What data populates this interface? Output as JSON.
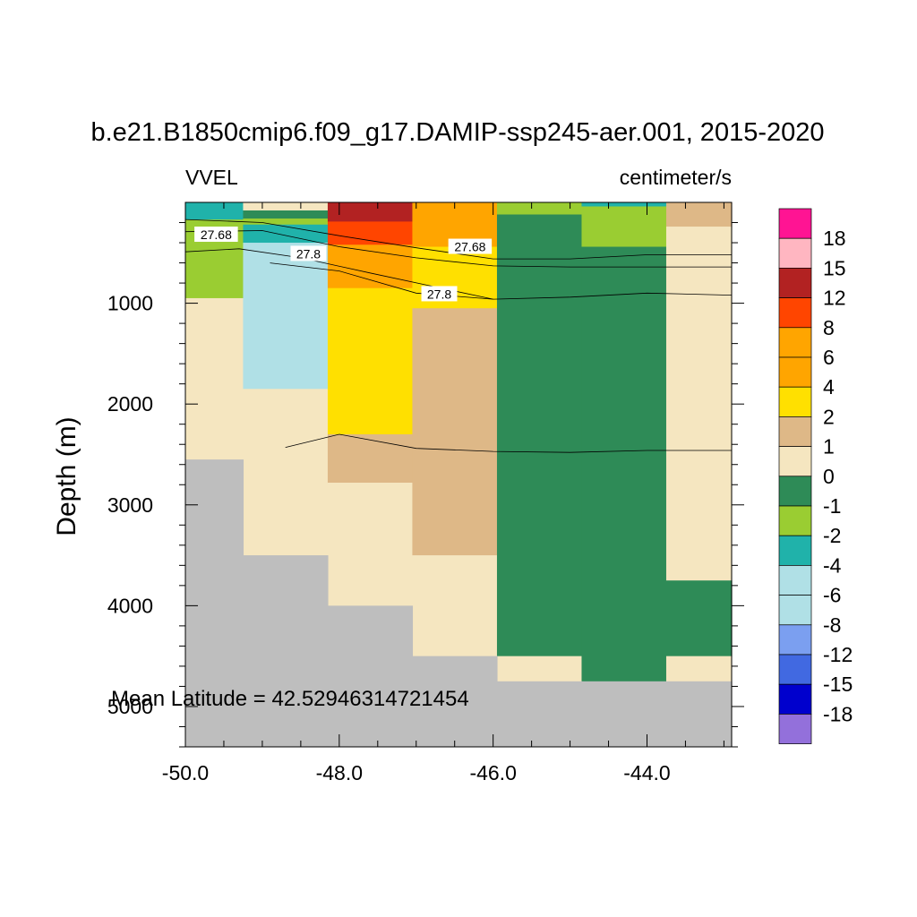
{
  "chart_data": {
    "type": "heatmap",
    "title": "b.e21.B1850cmip6.f09_g17.DAMIP-ssp245-aer.001, 2015-2020",
    "left_label": "VVEL",
    "right_label": "centimeter/s",
    "ylabel": "Depth (m)",
    "xlabel": "",
    "annotation": "Mean Latitude = 42.52946314721454",
    "xlim": [
      -50.0,
      -42.9
    ],
    "ylim": [
      0,
      5400
    ],
    "y_reversed": true,
    "x_ticks": [
      "-50.0",
      "-48.0",
      "-46.0",
      "-44.0"
    ],
    "x_tick_values": [
      -50,
      -48,
      -46,
      -44
    ],
    "y_ticks": [
      "1000",
      "2000",
      "3000",
      "4000",
      "5000"
    ],
    "y_tick_values": [
      1000,
      2000,
      3000,
      4000,
      5000
    ],
    "land_color": "#bebebe",
    "colorbar": {
      "labels": [
        "18",
        "15",
        "12",
        "8",
        "6",
        "4",
        "2",
        "1",
        "0",
        "-1",
        "-2",
        "-4",
        "-6",
        "-8",
        "-12",
        "-15",
        "-18"
      ],
      "colors": [
        "#ff1493",
        "#ffb6c1",
        "#b22222",
        "#ff4500",
        "#ffa500",
        "#ffa500",
        "#ffe000",
        "#deb887",
        "#f5e6c0",
        "#2e8b57",
        "#9acd32",
        "#20b2aa",
        "#b0e0e6",
        "#b0e0e6",
        "#7b9ff0",
        "#4169e1",
        "#0000cd",
        "#9370db"
      ]
    },
    "cells": [
      {
        "x": [
          -50.0,
          -49.25
        ],
        "depth": [
          0,
          170
        ],
        "color": "#20b2aa"
      },
      {
        "x": [
          -50.0,
          -49.25
        ],
        "depth": [
          170,
          220
        ],
        "color": "#9acd32"
      },
      {
        "x": [
          -50.0,
          -49.25
        ],
        "depth": [
          220,
          950
        ],
        "color": "#9acd32"
      },
      {
        "x": [
          -50.0,
          -49.25
        ],
        "depth": [
          950,
          2550
        ],
        "color": "#f5e6c0"
      },
      {
        "x": [
          -49.25,
          -48.15
        ],
        "depth": [
          0,
          80
        ],
        "color": "#f5e6c0"
      },
      {
        "x": [
          -49.25,
          -48.15
        ],
        "depth": [
          80,
          160
        ],
        "color": "#2e8b57"
      },
      {
        "x": [
          -49.25,
          -48.15
        ],
        "depth": [
          160,
          220
        ],
        "color": "#9acd32"
      },
      {
        "x": [
          -49.25,
          -48.15
        ],
        "depth": [
          220,
          400
        ],
        "color": "#20b2aa"
      },
      {
        "x": [
          -49.25,
          -48.15
        ],
        "depth": [
          400,
          1850
        ],
        "color": "#b0e0e6"
      },
      {
        "x": [
          -49.25,
          -48.15
        ],
        "depth": [
          1850,
          3500
        ],
        "color": "#f5e6c0"
      },
      {
        "x": [
          -48.15,
          -47.05
        ],
        "depth": [
          0,
          190
        ],
        "color": "#b22222"
      },
      {
        "x": [
          -48.15,
          -47.05
        ],
        "depth": [
          190,
          420
        ],
        "color": "#ff4500"
      },
      {
        "x": [
          -48.15,
          -47.05
        ],
        "depth": [
          420,
          850
        ],
        "color": "#ffa500"
      },
      {
        "x": [
          -48.15,
          -47.05
        ],
        "depth": [
          850,
          2300
        ],
        "color": "#ffe000"
      },
      {
        "x": [
          -48.15,
          -47.05
        ],
        "depth": [
          2300,
          2780
        ],
        "color": "#deb887"
      },
      {
        "x": [
          -48.15,
          -47.05
        ],
        "depth": [
          2780,
          4000
        ],
        "color": "#f5e6c0"
      },
      {
        "x": [
          -47.05,
          -45.95
        ],
        "depth": [
          0,
          440
        ],
        "color": "#ffa500"
      },
      {
        "x": [
          -47.05,
          -45.95
        ],
        "depth": [
          440,
          1050
        ],
        "color": "#ffe000"
      },
      {
        "x": [
          -47.05,
          -45.95
        ],
        "depth": [
          1050,
          3500
        ],
        "color": "#deb887"
      },
      {
        "x": [
          -47.05,
          -45.95
        ],
        "depth": [
          3500,
          4500
        ],
        "color": "#f5e6c0"
      },
      {
        "x": [
          -45.95,
          -44.85
        ],
        "depth": [
          0,
          120
        ],
        "color": "#9acd32"
      },
      {
        "x": [
          -45.95,
          -44.85
        ],
        "depth": [
          120,
          4500
        ],
        "color": "#2e8b57"
      },
      {
        "x": [
          -45.95,
          -44.85
        ],
        "depth": [
          4500,
          4750
        ],
        "color": "#f5e6c0"
      },
      {
        "x": [
          -44.85,
          -43.75
        ],
        "depth": [
          0,
          40
        ],
        "color": "#20b2aa"
      },
      {
        "x": [
          -44.85,
          -43.75
        ],
        "depth": [
          40,
          440
        ],
        "color": "#9acd32"
      },
      {
        "x": [
          -44.85,
          -43.75
        ],
        "depth": [
          440,
          4750
        ],
        "color": "#2e8b57"
      },
      {
        "x": [
          -43.75,
          -42.9
        ],
        "depth": [
          0,
          240
        ],
        "color": "#deb887"
      },
      {
        "x": [
          -43.75,
          -42.9
        ],
        "depth": [
          240,
          3750
        ],
        "color": "#f5e6c0"
      },
      {
        "x": [
          -43.75,
          -42.9
        ],
        "depth": [
          3750,
          4500
        ],
        "color": "#2e8b57"
      },
      {
        "x": [
          -43.75,
          -42.9
        ],
        "depth": [
          4500,
          4750
        ],
        "color": "#f5e6c0"
      }
    ],
    "land_cells": [
      {
        "x": [
          -50.0,
          -49.25
        ],
        "depth": [
          2550,
          5400
        ]
      },
      {
        "x": [
          -49.25,
          -48.15
        ],
        "depth": [
          3500,
          5400
        ]
      },
      {
        "x": [
          -48.15,
          -47.05
        ],
        "depth": [
          4000,
          5400
        ]
      },
      {
        "x": [
          -47.05,
          -45.95
        ],
        "depth": [
          4500,
          5400
        ]
      },
      {
        "x": [
          -45.95,
          -44.85
        ],
        "depth": [
          4750,
          5400
        ]
      },
      {
        "x": [
          -44.85,
          -43.75
        ],
        "depth": [
          4750,
          5400
        ]
      },
      {
        "x": [
          -43.75,
          -42.9
        ],
        "depth": [
          4750,
          5400
        ]
      }
    ],
    "contours": [
      {
        "level": "27.68",
        "points": [
          [
            -50.0,
            170
          ],
          [
            -49.0,
            200
          ],
          [
            -48.0,
            330
          ],
          [
            -47.0,
            450
          ],
          [
            -46.0,
            560
          ],
          [
            -45.0,
            560
          ],
          [
            -44.0,
            520
          ],
          [
            -42.9,
            520
          ]
        ],
        "label_pos": [
          -46.3,
          440
        ]
      },
      {
        "level": "27.68",
        "points": [
          [
            -50.0,
            290
          ],
          [
            -49.0,
            280
          ],
          [
            -48.0,
            440
          ],
          [
            -47.0,
            550
          ],
          [
            -46.0,
            630
          ],
          [
            -45.0,
            640
          ],
          [
            -44.0,
            640
          ],
          [
            -42.9,
            640
          ]
        ],
        "label_pos": [
          -49.6,
          320
        ]
      },
      {
        "level": "27.8",
        "points": [
          [
            -50.0,
            490
          ],
          [
            -49.3,
            460
          ],
          [
            -48.5,
            550
          ],
          [
            -47.6,
            700
          ],
          [
            -46.8,
            830
          ],
          [
            -46.0,
            960
          ],
          [
            -45.0,
            940
          ],
          [
            -44.0,
            900
          ],
          [
            -42.9,
            920
          ]
        ],
        "label_pos": [
          -48.4,
          510
        ]
      },
      {
        "level": "27.8",
        "points": [
          [
            -48.9,
            600
          ],
          [
            -48.0,
            680
          ],
          [
            -47.0,
            900
          ],
          [
            -46.0,
            960
          ]
        ],
        "label_pos": [
          -46.7,
          910
        ]
      },
      {
        "level": "",
        "points": [
          [
            -48.7,
            2430
          ],
          [
            -48.0,
            2300
          ],
          [
            -47.0,
            2440
          ],
          [
            -46.0,
            2470
          ],
          [
            -45.0,
            2480
          ],
          [
            -44.0,
            2460
          ],
          [
            -42.9,
            2460
          ]
        ],
        "label_pos": null
      }
    ]
  }
}
